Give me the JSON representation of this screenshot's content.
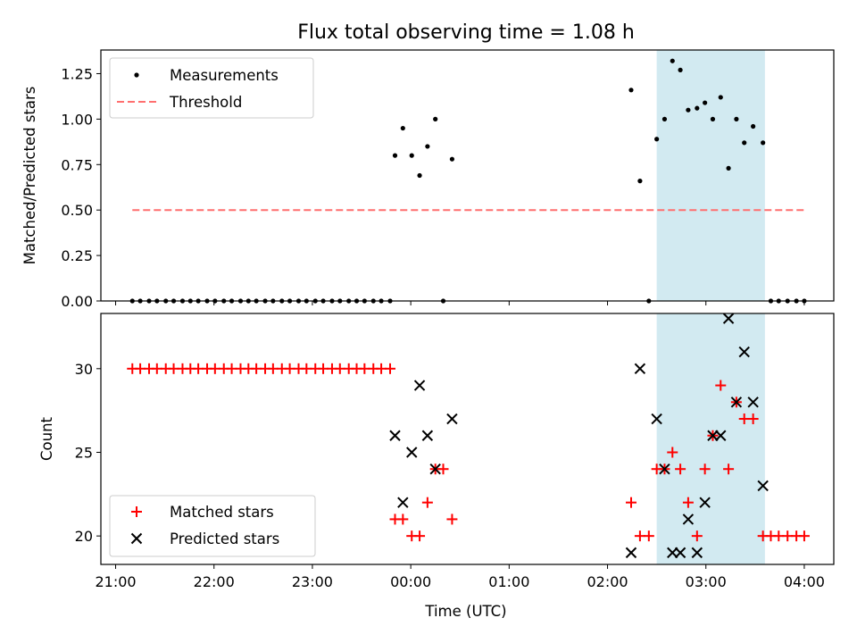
{
  "chart_data": {
    "type": "scatter",
    "title": "Flux total observing time = 1.08 h",
    "xlabel": "Time (UTC)",
    "x_unit": "hours since 21:00 UTC",
    "xlim": [
      -0.15,
      7.3
    ],
    "xticks": [
      {
        "value": 0,
        "label": "21:00"
      },
      {
        "value": 1,
        "label": "22:00"
      },
      {
        "value": 2,
        "label": "23:00"
      },
      {
        "value": 3,
        "label": "00:00"
      },
      {
        "value": 4,
        "label": "01:00"
      },
      {
        "value": 5,
        "label": "02:00"
      },
      {
        "value": 6,
        "label": "03:00"
      },
      {
        "value": 7,
        "label": "04:00"
      }
    ],
    "highlight_span": {
      "x": [
        5.5,
        6.6
      ],
      "color": "#add8e6"
    },
    "top": {
      "ylabel": "Matched/Predicted stars",
      "ylim": [
        0,
        1.38
      ],
      "yticks": [
        {
          "value": 0,
          "label": "0.00"
        },
        {
          "value": 0.25,
          "label": "0.25"
        },
        {
          "value": 0.5,
          "label": "0.50"
        },
        {
          "value": 0.75,
          "label": "0.75"
        },
        {
          "value": 1.0,
          "label": "1.00"
        },
        {
          "value": 1.25,
          "label": "1.25"
        }
      ],
      "threshold": {
        "name": "Threshold",
        "y": 0.5,
        "x": [
          0.17,
          7.02
        ],
        "color": "#ff6f6f"
      },
      "measurements": {
        "name": "Measurements",
        "color": "#000000",
        "points": [
          [
            0.17,
            0
          ],
          [
            0.25,
            0
          ],
          [
            0.34,
            0
          ],
          [
            0.42,
            0
          ],
          [
            0.51,
            0
          ],
          [
            0.59,
            0
          ],
          [
            0.68,
            0
          ],
          [
            0.76,
            0
          ],
          [
            0.84,
            0
          ],
          [
            0.93,
            0
          ],
          [
            1.01,
            0
          ],
          [
            1.1,
            0
          ],
          [
            1.18,
            0
          ],
          [
            1.27,
            0
          ],
          [
            1.35,
            0
          ],
          [
            1.43,
            0
          ],
          [
            1.52,
            0
          ],
          [
            1.6,
            0
          ],
          [
            1.69,
            0
          ],
          [
            1.77,
            0
          ],
          [
            1.86,
            0
          ],
          [
            1.94,
            0
          ],
          [
            2.03,
            0
          ],
          [
            2.11,
            0
          ],
          [
            2.2,
            0
          ],
          [
            2.28,
            0
          ],
          [
            2.37,
            0
          ],
          [
            2.45,
            0
          ],
          [
            2.53,
            0
          ],
          [
            2.62,
            0
          ],
          [
            2.7,
            0
          ],
          [
            2.79,
            0
          ],
          [
            2.84,
            0.8
          ],
          [
            2.92,
            0.95
          ],
          [
            3.01,
            0.8
          ],
          [
            3.09,
            0.69
          ],
          [
            3.17,
            0.85
          ],
          [
            3.25,
            1.0
          ],
          [
            3.33,
            0
          ],
          [
            3.42,
            0.78
          ],
          [
            5.24,
            1.16
          ],
          [
            5.33,
            0.66
          ],
          [
            5.42,
            0
          ],
          [
            5.5,
            0.89
          ],
          [
            5.58,
            1.0
          ],
          [
            5.66,
            1.32
          ],
          [
            5.74,
            1.27
          ],
          [
            5.82,
            1.05
          ],
          [
            5.91,
            1.06
          ],
          [
            5.99,
            1.09
          ],
          [
            6.07,
            1.0
          ],
          [
            6.15,
            1.12
          ],
          [
            6.23,
            0.73
          ],
          [
            6.31,
            1.0
          ],
          [
            6.39,
            0.87
          ],
          [
            6.48,
            0.96
          ],
          [
            6.58,
            0.87
          ],
          [
            6.66,
            0
          ],
          [
            6.74,
            0
          ],
          [
            6.83,
            0
          ],
          [
            6.92,
            0
          ],
          [
            7.0,
            0
          ]
        ]
      }
    },
    "bottom": {
      "ylabel": "Count",
      "ylim": [
        18.3,
        33.3
      ],
      "yticks": [
        {
          "value": 20,
          "label": "20"
        },
        {
          "value": 25,
          "label": "25"
        },
        {
          "value": 30,
          "label": "30"
        }
      ],
      "series": [
        {
          "name": "Matched stars",
          "marker": "plus",
          "color": "#ff0000",
          "points": [
            [
              0.17,
              30
            ],
            [
              0.25,
              30
            ],
            [
              0.34,
              30
            ],
            [
              0.42,
              30
            ],
            [
              0.51,
              30
            ],
            [
              0.59,
              30
            ],
            [
              0.68,
              30
            ],
            [
              0.76,
              30
            ],
            [
              0.84,
              30
            ],
            [
              0.93,
              30
            ],
            [
              1.01,
              30
            ],
            [
              1.1,
              30
            ],
            [
              1.18,
              30
            ],
            [
              1.27,
              30
            ],
            [
              1.35,
              30
            ],
            [
              1.43,
              30
            ],
            [
              1.52,
              30
            ],
            [
              1.6,
              30
            ],
            [
              1.69,
              30
            ],
            [
              1.77,
              30
            ],
            [
              1.86,
              30
            ],
            [
              1.94,
              30
            ],
            [
              2.03,
              30
            ],
            [
              2.11,
              30
            ],
            [
              2.2,
              30
            ],
            [
              2.28,
              30
            ],
            [
              2.37,
              30
            ],
            [
              2.45,
              30
            ],
            [
              2.53,
              30
            ],
            [
              2.62,
              30
            ],
            [
              2.7,
              30
            ],
            [
              2.79,
              30
            ],
            [
              2.84,
              21
            ],
            [
              2.92,
              21
            ],
            [
              3.01,
              20
            ],
            [
              3.09,
              20
            ],
            [
              3.17,
              22
            ],
            [
              3.25,
              24
            ],
            [
              3.33,
              24
            ],
            [
              3.42,
              21
            ],
            [
              5.24,
              22
            ],
            [
              5.33,
              20
            ],
            [
              5.42,
              20
            ],
            [
              5.5,
              24
            ],
            [
              5.58,
              24
            ],
            [
              5.66,
              25
            ],
            [
              5.74,
              24
            ],
            [
              5.82,
              22
            ],
            [
              5.91,
              20
            ],
            [
              5.99,
              24
            ],
            [
              6.07,
              26
            ],
            [
              6.15,
              29
            ],
            [
              6.23,
              24
            ],
            [
              6.31,
              28
            ],
            [
              6.39,
              27
            ],
            [
              6.48,
              27
            ],
            [
              6.58,
              20
            ],
            [
              6.66,
              20
            ],
            [
              6.74,
              20
            ],
            [
              6.83,
              20
            ],
            [
              6.92,
              20
            ],
            [
              7.0,
              20
            ]
          ]
        },
        {
          "name": "Predicted stars",
          "marker": "x",
          "color": "#000000",
          "points": [
            [
              2.84,
              26
            ],
            [
              2.92,
              22
            ],
            [
              3.01,
              25
            ],
            [
              3.09,
              29
            ],
            [
              3.17,
              26
            ],
            [
              3.25,
              24
            ],
            [
              3.42,
              27
            ],
            [
              5.24,
              19
            ],
            [
              5.33,
              30
            ],
            [
              5.5,
              27
            ],
            [
              5.58,
              24
            ],
            [
              5.66,
              19
            ],
            [
              5.74,
              19
            ],
            [
              5.82,
              21
            ],
            [
              5.91,
              19
            ],
            [
              5.99,
              22
            ],
            [
              6.07,
              26
            ],
            [
              6.15,
              26
            ],
            [
              6.23,
              33
            ],
            [
              6.31,
              28
            ],
            [
              6.39,
              31
            ],
            [
              6.48,
              28
            ],
            [
              6.58,
              23
            ]
          ]
        }
      ]
    }
  }
}
